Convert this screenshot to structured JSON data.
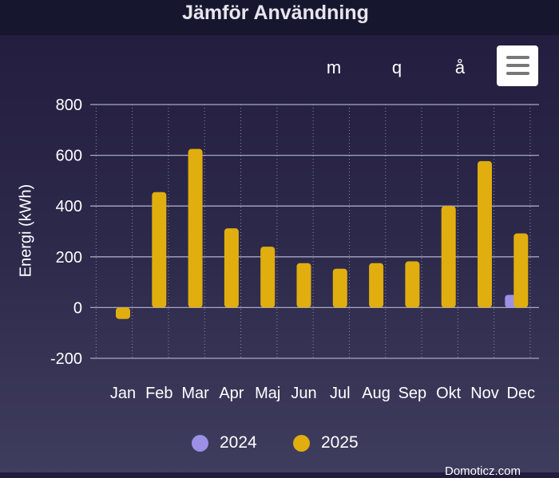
{
  "header": {
    "title": "Jämför Användning"
  },
  "periods": [
    {
      "label": "m",
      "name": "period-month-button"
    },
    {
      "label": "q",
      "name": "period-quarter-button"
    },
    {
      "label": "å",
      "name": "period-year-button"
    }
  ],
  "menu_icon": "hamburger-menu-icon",
  "chart_data": {
    "type": "bar",
    "title": "Jämför Användning",
    "ylabel": "Energi (kWh)",
    "xlabel": "",
    "categories": [
      "Jan",
      "Feb",
      "Mar",
      "Apr",
      "Maj",
      "Jun",
      "Jul",
      "Aug",
      "Sep",
      "Okt",
      "Nov",
      "Dec"
    ],
    "ylim": [
      -200,
      800
    ],
    "yticks": [
      800,
      600,
      400,
      200,
      0,
      -200
    ],
    "grid": true,
    "legend_position": "bottom",
    "series": [
      {
        "name": "2024",
        "color": "#9b90e6",
        "values": [
          null,
          null,
          null,
          null,
          null,
          null,
          null,
          null,
          null,
          null,
          null,
          50
        ]
      },
      {
        "name": "2025",
        "color": "#e0ae0e",
        "values": [
          -45,
          455,
          625,
          312,
          240,
          175,
          153,
          175,
          182,
          400,
          577,
          292
        ]
      }
    ]
  },
  "credit": "Domoticz.com"
}
